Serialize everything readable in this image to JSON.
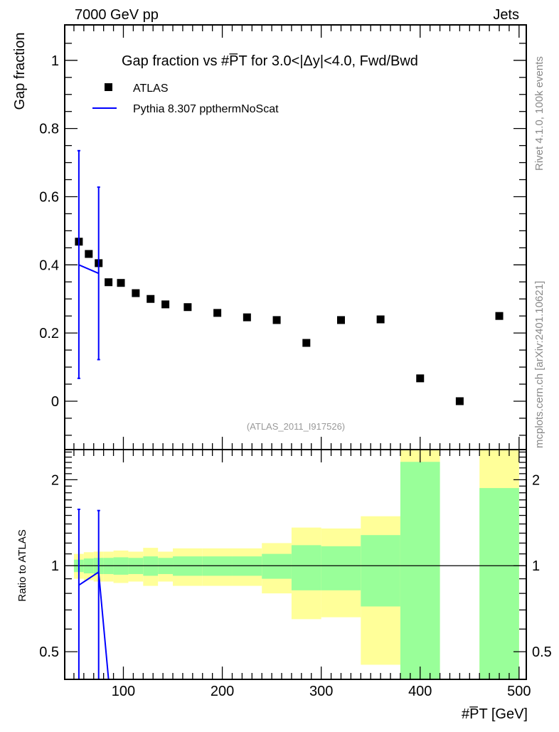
{
  "header": {
    "energy": "7000 GeV pp",
    "process": "Jets"
  },
  "side_text": {
    "rivet": "Rivet 4.1.0,  100k events",
    "mcplots": "mcplots.cern.ch [arXiv:2401.10621]"
  },
  "colors": {
    "data": "#000000",
    "mc": "#0000ff",
    "stat_band": "#99ff99",
    "total_band": "#ffff99"
  },
  "chart_data": [
    {
      "type": "scatter",
      "title": "Gap fraction vs #P̅T for 3.0<|Δy|<4.0, Fwd/Bwd",
      "title_parts": {
        "pre": "Gap fraction vs #",
        "p": "P",
        "sub": "T",
        "post": " for 3.0<|Δy|<4.0, Fwd/Bwd"
      },
      "ylabel": "Gap fraction",
      "analysis": "(ATLAS_2011_I917526)",
      "xlim": [
        40.7,
        507.3
      ],
      "ylim": [
        -0.142,
        1.104
      ],
      "yticks": [
        "0",
        "0.2",
        "0.4",
        "0.6",
        "0.8",
        "1"
      ],
      "ytick_values": [
        0,
        0.2,
        0.4,
        0.6,
        0.8,
        1
      ],
      "legend": {
        "placement": "top-left",
        "entries": [
          "ATLAS",
          "Pythia 8.307 ppthermNoScat"
        ]
      },
      "bin_edges": [
        50,
        60,
        70,
        80,
        90,
        105,
        120,
        135,
        150,
        180,
        210,
        240,
        270,
        300,
        340,
        380,
        420,
        460,
        500
      ],
      "series": [
        {
          "name": "ATLAS",
          "x": [
            55,
            65,
            75,
            85,
            97.5,
            112.5,
            127.5,
            142.5,
            165,
            195,
            225,
            255,
            285,
            320,
            360,
            400,
            440,
            480
          ],
          "y": [
            0.468,
            0.432,
            0.405,
            0.349,
            0.347,
            0.317,
            0.3,
            0.284,
            0.276,
            0.259,
            0.246,
            0.238,
            0.171,
            0.238,
            0.24,
            0.067,
            0.0,
            0.25
          ]
        },
        {
          "name": "Pythia 8.307 ppthermNoScat",
          "x": [
            55,
            75
          ],
          "y": [
            0.4,
            0.375
          ],
          "err_low": [
            0.067,
            0.122
          ],
          "err_high": [
            0.735,
            0.628
          ]
        }
      ]
    },
    {
      "type": "line",
      "ylabel": "Ratio to ATLAS",
      "xlabel_parts": {
        "pre": "#",
        "p": "P",
        "sub": "T",
        "post": " [GeV]"
      },
      "xlabel": "#P̅T [GeV]",
      "xlim": [
        40.7,
        507.3
      ],
      "ylim": [
        0.4,
        2.55
      ],
      "yscale": "log",
      "xticks": [
        "100",
        "200",
        "300",
        "400",
        "500"
      ],
      "xtick_values": [
        100,
        200,
        300,
        400,
        500
      ],
      "yticks": [
        "0.5",
        "1",
        "2"
      ],
      "ytick_values": [
        0.5,
        1,
        2
      ],
      "stat_band": {
        "up": [
          1.05,
          1.06,
          1.065,
          1.065,
          1.07,
          1.065,
          1.078,
          1.065,
          1.078,
          1.078,
          1.078,
          1.1,
          1.18,
          1.17,
          1.28,
          2.31,
          null,
          1.87
        ],
        "down": [
          0.95,
          0.94,
          0.935,
          0.935,
          0.93,
          0.935,
          0.922,
          0.935,
          0.922,
          0.922,
          0.922,
          0.9,
          0.82,
          0.82,
          0.72,
          0.0,
          null,
          0.0
        ]
      },
      "total_band": {
        "up": [
          1.1,
          1.115,
          1.12,
          1.12,
          1.13,
          1.12,
          1.155,
          1.12,
          1.15,
          1.15,
          1.15,
          1.2,
          1.36,
          1.35,
          1.49,
          2.7,
          null,
          2.7
        ],
        "down": [
          0.9,
          0.89,
          0.88,
          0.88,
          0.87,
          0.88,
          0.85,
          0.88,
          0.85,
          0.85,
          0.85,
          0.8,
          0.65,
          0.66,
          0.45,
          0.0,
          null,
          0.0
        ]
      },
      "pythia_ratio": {
        "x": [
          55,
          75,
          85
        ],
        "y": [
          0.855,
          0.95,
          0.0
        ],
        "err_high": [
          1.575,
          1.56,
          null
        ],
        "err_low": [
          0.0,
          0.0,
          null
        ]
      }
    }
  ]
}
